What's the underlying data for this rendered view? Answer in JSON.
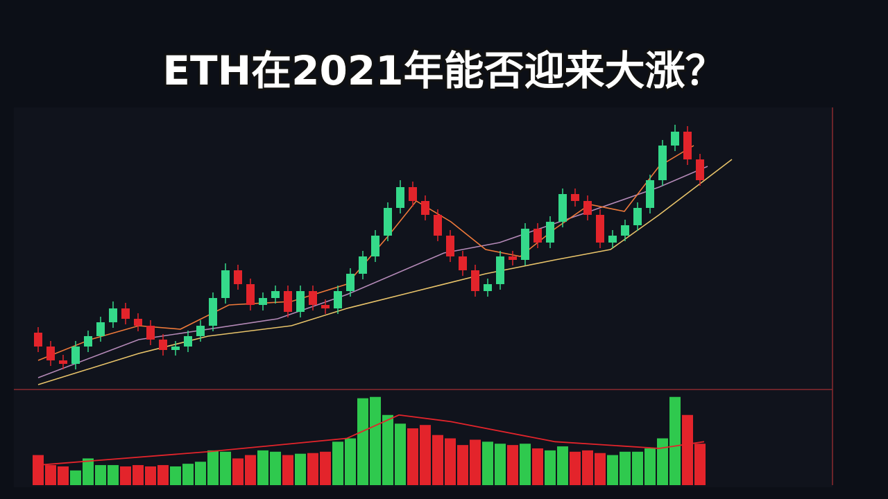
{
  "chart_data": {
    "type": "candlestick",
    "title": "ETH在2021年能否迎来大涨？",
    "xlim": [
      0,
      1010
    ],
    "ylim": [
      0,
      400
    ],
    "vlim": [
      0,
      140
    ],
    "up_color": "#35d98a",
    "down_color": "#e3242b",
    "volume_up_color": "#2fc94e",
    "volume_down_color": "#e3242b",
    "candles": {
      "x": [
        5,
        23,
        41,
        59,
        77,
        95,
        113,
        131,
        149,
        167,
        185,
        203,
        221,
        239,
        257,
        275,
        293,
        311,
        329,
        347,
        365,
        383,
        401,
        419,
        437,
        455,
        473,
        491,
        509,
        527,
        545,
        563,
        581,
        599,
        617,
        635,
        653,
        671,
        689,
        707,
        725,
        743,
        761,
        779,
        797,
        815,
        833,
        851,
        869,
        887,
        905,
        923,
        941,
        959
      ],
      "open": [
        80,
        60,
        40,
        35,
        60,
        75,
        95,
        115,
        100,
        90,
        70,
        55,
        60,
        75,
        90,
        130,
        170,
        150,
        120,
        130,
        140,
        110,
        140,
        120,
        115,
        140,
        165,
        190,
        220,
        260,
        290,
        270,
        250,
        220,
        190,
        170,
        140,
        150,
        190,
        185,
        230,
        210,
        240,
        280,
        270,
        250,
        210,
        220,
        235,
        260,
        300,
        350,
        370,
        330
      ],
      "high": [
        88,
        68,
        48,
        68,
        83,
        103,
        125,
        123,
        108,
        98,
        78,
        68,
        83,
        98,
        138,
        180,
        178,
        158,
        138,
        148,
        148,
        148,
        148,
        128,
        148,
        173,
        198,
        228,
        268,
        300,
        298,
        278,
        258,
        228,
        198,
        178,
        158,
        198,
        198,
        238,
        238,
        248,
        288,
        288,
        278,
        258,
        228,
        243,
        268,
        308,
        358,
        380,
        378,
        338
      ],
      "low": [
        52,
        32,
        27,
        27,
        52,
        67,
        87,
        92,
        82,
        62,
        47,
        47,
        52,
        67,
        82,
        122,
        142,
        112,
        112,
        122,
        102,
        102,
        112,
        107,
        107,
        132,
        157,
        182,
        212,
        252,
        262,
        242,
        212,
        182,
        162,
        132,
        132,
        142,
        177,
        177,
        202,
        202,
        232,
        262,
        242,
        202,
        202,
        212,
        227,
        252,
        292,
        342,
        322,
        292
      ],
      "close": [
        60,
        40,
        35,
        60,
        75,
        95,
        115,
        100,
        90,
        70,
        55,
        60,
        75,
        90,
        130,
        170,
        150,
        120,
        130,
        140,
        110,
        140,
        120,
        115,
        140,
        165,
        190,
        220,
        260,
        290,
        270,
        250,
        220,
        190,
        170,
        140,
        150,
        190,
        185,
        230,
        210,
        240,
        280,
        270,
        250,
        210,
        220,
        235,
        260,
        300,
        350,
        370,
        330,
        300
      ],
      "volume": [
        45,
        30,
        28,
        22,
        40,
        30,
        30,
        28,
        30,
        28,
        30,
        28,
        32,
        35,
        52,
        50,
        40,
        45,
        52,
        50,
        45,
        47,
        48,
        50,
        65,
        70,
        130,
        132,
        105,
        92,
        85,
        90,
        75,
        70,
        60,
        68,
        65,
        62,
        60,
        62,
        55,
        52,
        58,
        50,
        52,
        48,
        45,
        50,
        50,
        55,
        70,
        132,
        105,
        62
      ]
    },
    "lines": [
      {
        "color": "#e9c46a",
        "x": [
          5,
          150,
          250,
          370,
          450,
          550,
          650,
          750,
          830,
          900,
          1005
        ],
        "values": [
          5,
          50,
          75,
          90,
          115,
          140,
          165,
          185,
          200,
          250,
          330
        ]
      },
      {
        "color": "#b58ab8",
        "x": [
          5,
          150,
          350,
          450,
          590,
          670,
          800,
          900,
          970
        ],
        "values": [
          15,
          70,
          100,
          135,
          195,
          210,
          255,
          290,
          320
        ]
      },
      {
        "color": "#f07a3a",
        "x": [
          5,
          80,
          150,
          210,
          280,
          370,
          450,
          510,
          550,
          600,
          650,
          700,
          750,
          800,
          850,
          900,
          950
        ],
        "values": [
          40,
          70,
          90,
          85,
          120,
          125,
          150,
          220,
          270,
          240,
          200,
          190,
          230,
          265,
          255,
          320,
          350
        ]
      }
    ],
    "volume_line": {
      "color": "#e3242b",
      "x": [
        5,
        250,
        450,
        525,
        600,
        750,
        900,
        965
      ],
      "values": [
        30,
        50,
        70,
        105,
        95,
        65,
        55,
        65
      ]
    }
  }
}
